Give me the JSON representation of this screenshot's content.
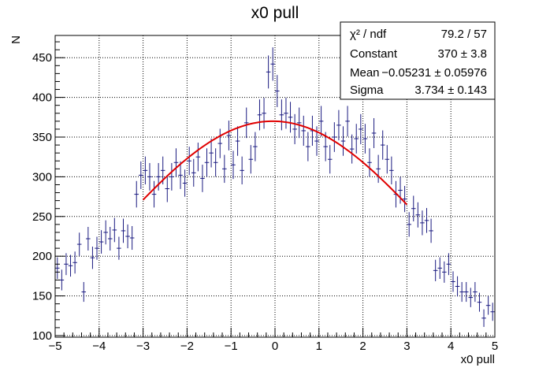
{
  "chart_data": {
    "type": "scatter",
    "title": "x0 pull",
    "xlabel": "x0 pull",
    "ylabel": "N",
    "xlim": [
      -5,
      5
    ],
    "ylim": [
      98,
      478
    ],
    "x_ticks": [
      "−5",
      "−4",
      "−3",
      "−2",
      "−1",
      "0",
      "1",
      "2",
      "3",
      "4",
      "5"
    ],
    "y_ticks": [
      "100",
      "150",
      "200",
      "250",
      "300",
      "350",
      "400",
      "450"
    ],
    "grid": true,
    "data_color": "#1a1a80",
    "fit_color": "#e00000",
    "bin_width": 0.1,
    "x": [
      -4.95,
      -4.85,
      -4.75,
      -4.65,
      -4.55,
      -4.45,
      -4.35,
      -4.25,
      -4.15,
      -4.05,
      -3.95,
      -3.85,
      -3.75,
      -3.65,
      -3.55,
      -3.45,
      -3.35,
      -3.25,
      -3.15,
      -3.05,
      -2.95,
      -2.85,
      -2.75,
      -2.65,
      -2.55,
      -2.45,
      -2.35,
      -2.25,
      -2.15,
      -2.05,
      -1.95,
      -1.85,
      -1.75,
      -1.65,
      -1.55,
      -1.45,
      -1.35,
      -1.25,
      -1.15,
      -1.05,
      -0.95,
      -0.85,
      -0.75,
      -0.65,
      -0.55,
      -0.45,
      -0.35,
      -0.25,
      -0.15,
      -0.05,
      0.05,
      0.15,
      0.25,
      0.35,
      0.45,
      0.55,
      0.65,
      0.75,
      0.85,
      0.95,
      1.05,
      1.15,
      1.25,
      1.35,
      1.45,
      1.55,
      1.65,
      1.75,
      1.85,
      1.95,
      2.05,
      2.15,
      2.25,
      2.35,
      2.45,
      2.55,
      2.65,
      2.75,
      2.85,
      2.95,
      3.05,
      3.15,
      3.25,
      3.35,
      3.45,
      3.55,
      3.65,
      3.75,
      3.85,
      3.95,
      4.05,
      4.15,
      4.25,
      4.35,
      4.45,
      4.55,
      4.65,
      4.75,
      4.85,
      4.95
    ],
    "y": [
      185,
      170,
      190,
      188,
      192,
      215,
      155,
      222,
      198,
      210,
      218,
      230,
      222,
      233,
      210,
      232,
      225,
      223,
      278,
      302,
      308,
      300,
      278,
      300,
      308,
      285,
      300,
      318,
      302,
      292,
      320,
      305,
      325,
      298,
      318,
      330,
      318,
      342,
      310,
      352,
      315,
      345,
      308,
      368,
      322,
      338,
      378,
      380,
      432,
      442,
      408,
      378,
      380,
      375,
      360,
      368,
      358,
      338,
      358,
      345,
      370,
      338,
      322,
      350,
      365,
      345,
      370,
      335,
      348,
      360,
      348,
      318,
      355,
      310,
      340,
      322,
      308,
      278,
      283,
      272,
      240,
      260,
      252,
      242,
      245,
      232,
      182,
      185,
      180,
      190,
      168,
      162,
      155,
      155,
      148,
      155,
      142,
      122,
      138,
      130
    ],
    "fit": {
      "name": "gaus",
      "constant": 370,
      "mean": -0.05231,
      "sigma": 3.734,
      "range": [
        -3,
        3
      ]
    },
    "stats_box": {
      "position": "top-right",
      "rows": [
        {
          "label": "χ² / ndf",
          "value": "79.2 / 57"
        },
        {
          "label": "Constant",
          "value": "370 ± 3.8"
        },
        {
          "label": "Mean",
          "value": "−0.05231 ± 0.05976"
        },
        {
          "label": "Sigma",
          "value": "3.734 ± 0.143"
        }
      ]
    }
  }
}
